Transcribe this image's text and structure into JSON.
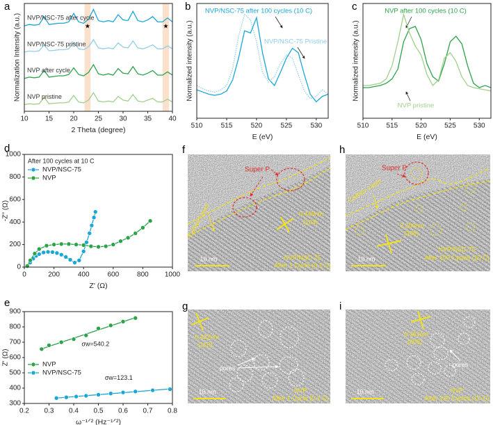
{
  "chart_data": [
    {
      "type": "line",
      "panel_label": "a",
      "xlabel": "2 Theta (degree)",
      "ylabel": "Normalization Intensity (a.u.)",
      "x": [
        10,
        11,
        12,
        13,
        14,
        15,
        16,
        17,
        18,
        19,
        20,
        21,
        22,
        23,
        24,
        25,
        26,
        27,
        28,
        29,
        30,
        31,
        32,
        33,
        34,
        35,
        36,
        37,
        38,
        39,
        40
      ],
      "xlim": [
        10,
        40
      ],
      "xticks": [
        10,
        15,
        20,
        25,
        30,
        35,
        40
      ],
      "ylim": [
        0,
        8.2
      ],
      "shaded_regions": [
        {
          "range": [
            22.2,
            23.4
          ],
          "label": "★"
        },
        {
          "range": [
            38,
            39.3
          ],
          "label": "★"
        }
      ],
      "series": [
        {
          "name": "NVP/NSC-75 after cycle",
          "color": "#1ba7d6",
          "values": [
            6.5,
            6.6,
            6.55,
            6.6,
            7.2,
            6.6,
            6.65,
            6.7,
            6.7,
            6.8,
            7.45,
            6.8,
            6.7,
            7.0,
            7.75,
            6.9,
            6.8,
            6.9,
            6.8,
            7.35,
            6.95,
            6.9,
            7.6,
            6.9,
            6.8,
            6.95,
            7.2,
            6.8,
            6.8,
            7.1,
            6.8
          ]
        },
        {
          "name": "NVP/NSC-75 pristine",
          "color": "#8fcfe8",
          "values": [
            4.5,
            4.58,
            4.55,
            4.6,
            5.05,
            4.6,
            4.63,
            4.68,
            4.68,
            4.75,
            5.25,
            4.75,
            4.68,
            4.9,
            5.45,
            4.82,
            4.75,
            4.82,
            4.75,
            5.2,
            4.88,
            4.82,
            5.35,
            4.82,
            4.75,
            4.88,
            5.05,
            4.75,
            4.75,
            4.98,
            4.75
          ]
        },
        {
          "name": "NVP after cycle",
          "color": "#2ca34a",
          "values": [
            2.5,
            2.6,
            2.55,
            2.6,
            3.1,
            2.6,
            2.65,
            2.7,
            2.7,
            2.8,
            3.3,
            2.8,
            2.7,
            2.95,
            3.55,
            2.85,
            2.75,
            2.85,
            2.75,
            3.25,
            2.9,
            2.85,
            3.4,
            2.85,
            2.75,
            2.9,
            3.1,
            2.75,
            2.75,
            3.0,
            2.75
          ]
        },
        {
          "name": "NVP pristine",
          "color": "#9fd08c",
          "values": [
            0.5,
            0.57,
            0.54,
            0.57,
            1.06,
            0.57,
            0.61,
            0.64,
            0.64,
            0.71,
            1.2,
            0.71,
            0.64,
            0.85,
            1.41,
            0.78,
            0.71,
            0.78,
            0.71,
            1.13,
            0.85,
            0.78,
            1.27,
            0.78,
            0.71,
            0.85,
            0.99,
            0.71,
            0.71,
            0.92,
            0.71
          ]
        }
      ]
    },
    {
      "type": "line",
      "panel_label": "b",
      "xlabel": "E (eV)",
      "ylabel": "Normalized intensity (a.u.)",
      "x": [
        510,
        511,
        512,
        513,
        514,
        515,
        516,
        517,
        518,
        519,
        520,
        521,
        522,
        523,
        524,
        525,
        526,
        527,
        528,
        529,
        530,
        531,
        532
      ],
      "xlim": [
        510,
        532
      ],
      "xticks": [
        510,
        515,
        520,
        525,
        530
      ],
      "ylim": [
        0,
        1.05
      ],
      "series": [
        {
          "name": "NVP/NSC-75 after 100 cycles (10 C)",
          "color": "#1ba7d6",
          "dash": "solid",
          "values": [
            0.26,
            0.24,
            0.22,
            0.21,
            0.22,
            0.25,
            0.35,
            0.55,
            0.8,
            0.78,
            0.92,
            0.6,
            0.36,
            0.3,
            0.42,
            0.55,
            0.64,
            0.6,
            0.4,
            0.22,
            0.15,
            0.2,
            0.22
          ]
        },
        {
          "name": "NVP/NSC-75 Pristine",
          "color": "#8fcfe8",
          "dash": "dotted",
          "values": [
            0.3,
            0.27,
            0.25,
            0.24,
            0.26,
            0.3,
            0.45,
            0.75,
            0.95,
            0.9,
            0.7,
            0.42,
            0.33,
            0.38,
            0.5,
            0.58,
            0.55,
            0.4,
            0.25,
            0.18,
            0.2,
            0.26,
            0.22
          ]
        }
      ]
    },
    {
      "type": "line",
      "panel_label": "c",
      "xlabel": "E (eV)",
      "ylabel": "Normalized intensity (a.u.)",
      "x": [
        510,
        511,
        512,
        513,
        514,
        515,
        516,
        517,
        518,
        519,
        520,
        521,
        522,
        523,
        524,
        525,
        526,
        527,
        528,
        529,
        530,
        531,
        532
      ],
      "xlim": [
        510,
        532
      ],
      "xticks": [
        510,
        515,
        520,
        525,
        530
      ],
      "ylim": [
        0,
        1.05
      ],
      "series": [
        {
          "name": "NVP after 100 cycles (10 C)",
          "color": "#2ca34a",
          "dash": "solid",
          "values": [
            0.28,
            0.28,
            0.29,
            0.3,
            0.32,
            0.36,
            0.45,
            0.7,
            0.82,
            0.84,
            0.72,
            0.5,
            0.38,
            0.34,
            0.5,
            0.7,
            0.75,
            0.68,
            0.48,
            0.32,
            0.28,
            0.3,
            0.28
          ]
        },
        {
          "name": "NVP pristine",
          "color": "#9fd08c",
          "dash": "solid",
          "values": [
            0.3,
            0.3,
            0.31,
            0.32,
            0.36,
            0.48,
            0.7,
            0.95,
            0.78,
            0.66,
            0.58,
            0.4,
            0.3,
            0.35,
            0.55,
            0.6,
            0.52,
            0.38,
            0.3,
            0.28,
            0.27,
            0.26,
            0.25
          ]
        }
      ]
    },
    {
      "type": "line",
      "panel_label": "d",
      "xlabel": "Z' (Ω)",
      "ylabel": "-Z'' (Ω)",
      "annotation": "After 100 cycles at 10 C",
      "xlim": [
        0,
        1000
      ],
      "xticks": [
        0,
        200,
        400,
        600,
        800,
        1000
      ],
      "ylim": [
        0,
        1000
      ],
      "yticks": [
        0,
        200,
        400,
        600,
        800,
        1000
      ],
      "markers": true,
      "legend": "upper left",
      "series": [
        {
          "name": "NVP/NSC-75",
          "color": "#1ba7d6",
          "x": [
            20,
            40,
            60,
            80,
            100,
            130,
            160,
            190,
            220,
            250,
            280,
            310,
            340,
            370,
            400,
            420,
            440,
            455,
            470,
            480
          ],
          "values": [
            5,
            40,
            75,
            100,
            115,
            130,
            135,
            133,
            125,
            110,
            90,
            65,
            40,
            60,
            140,
            220,
            300,
            370,
            440,
            490
          ]
        },
        {
          "name": "NVP",
          "color": "#2ca34a",
          "x": [
            20,
            40,
            70,
            100,
            150,
            200,
            250,
            300,
            350,
            400,
            450,
            500,
            550,
            600,
            650,
            700,
            750,
            800,
            850
          ],
          "values": [
            10,
            60,
            120,
            160,
            190,
            200,
            205,
            205,
            200,
            195,
            185,
            180,
            185,
            200,
            230,
            260,
            300,
            350,
            410
          ]
        }
      ]
    },
    {
      "type": "scatter",
      "panel_label": "e",
      "xlabel": "ω⁻¹ᐟ² (Hz⁻¹ᐟ²)",
      "ylabel": "Z' (Ω)",
      "xlim": [
        0.2,
        0.8
      ],
      "xticks": [
        0.2,
        0.3,
        0.4,
        0.5,
        0.6,
        0.7,
        0.8
      ],
      "ylim": [
        300,
        900
      ],
      "yticks": [
        300,
        400,
        500,
        600,
        700,
        800,
        900
      ],
      "fit_line": true,
      "legend": "center left",
      "series": [
        {
          "name": "NVP",
          "color": "#2ca34a",
          "fit_label": "σw=540.2",
          "x": [
            0.27,
            0.3,
            0.35,
            0.4,
            0.45,
            0.5,
            0.55,
            0.6,
            0.65
          ],
          "values": [
            655,
            680,
            700,
            720,
            745,
            790,
            810,
            835,
            858
          ]
        },
        {
          "name": "NVP/NSC-75",
          "color": "#1ba7d6",
          "fit_label": "σw=123.1",
          "x": [
            0.33,
            0.37,
            0.41,
            0.45,
            0.5,
            0.55,
            0.6,
            0.65,
            0.72,
            0.79
          ],
          "values": [
            335,
            340,
            345,
            350,
            357,
            365,
            372,
            378,
            386,
            393
          ]
        }
      ]
    }
  ],
  "micrographs": [
    {
      "panel_label": "f",
      "super_p": "Super P",
      "carbon_layer": "Carbon Layer",
      "d_spacing": "0.445nm",
      "plane": "(104)",
      "scale_bar": "10 nm",
      "sample": "NVP/NSC-75",
      "condition": "After 1 Cycle (0.1 C)"
    },
    {
      "panel_label": "g",
      "d_spacing": "0.432nm",
      "plane": "(110)",
      "pores": "pores",
      "scale_bar": "10 nm",
      "sample": "NVP",
      "condition": "After 1 Cycle (0.1 C)"
    },
    {
      "panel_label": "h",
      "super_p": "Super P",
      "carbon_layer": "Carbon Layer",
      "d_spacing": "0.206nm",
      "plane": "(306)",
      "scale_bar": "10 nm",
      "sample": "NVP/NSC-75",
      "condition": "After 100 Cycles (10 C)"
    },
    {
      "panel_label": "i",
      "d_spacing": "0.363nm",
      "plane": "(006)",
      "pores": "pores",
      "scale_bar": "10 nm",
      "sample": "NVP",
      "condition": "After 100 Cycles (10 C)"
    }
  ]
}
